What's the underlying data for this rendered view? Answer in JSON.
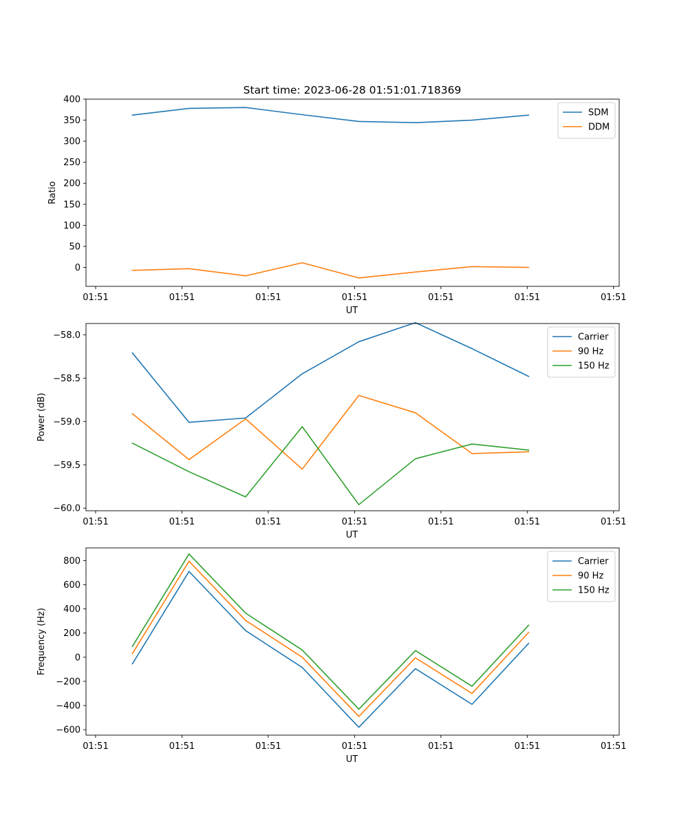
{
  "figure": {
    "title": "Start time: 2023-06-28 01:51:01.718369"
  },
  "chart_data": [
    {
      "type": "line",
      "xlabel": "UT",
      "ylabel": "Ratio",
      "x_tick_labels": [
        "01:51",
        "01:51",
        "01:51",
        "01:51",
        "01:51",
        "01:51",
        "01:51"
      ],
      "y_ticks": [
        0,
        50,
        100,
        150,
        200,
        250,
        300,
        350,
        400
      ],
      "ylim": [
        -45,
        400
      ],
      "legend_position": "top-right",
      "grid": false,
      "x": [
        1,
        2,
        3,
        4,
        5,
        6,
        7,
        8
      ],
      "series": [
        {
          "name": "SDM",
          "color": "#1f77b4",
          "values": [
            362,
            378,
            380,
            363,
            347,
            344,
            350,
            362
          ]
        },
        {
          "name": "DDM",
          "color": "#ff7f0e",
          "values": [
            -7,
            -3,
            -20,
            11,
            -25,
            -11,
            2,
            0
          ]
        }
      ]
    },
    {
      "type": "line",
      "xlabel": "UT",
      "ylabel": "Power (dB)",
      "x_tick_labels": [
        "01:51",
        "01:51",
        "01:51",
        "01:51",
        "01:51",
        "01:51",
        "01:51"
      ],
      "y_ticks": [
        -60.0,
        -59.5,
        -59.0,
        -58.5,
        -58.0
      ],
      "y_tick_labels": [
        "−60.0",
        "−59.5",
        "−59.0",
        "−58.5",
        "−58.0"
      ],
      "ylim": [
        -60.03,
        -57.87
      ],
      "legend_position": "top-right",
      "grid": false,
      "x": [
        1,
        2,
        3,
        4,
        5,
        6,
        7,
        8
      ],
      "series": [
        {
          "name": "Carrier",
          "color": "#1f77b4",
          "values": [
            -58.21,
            -59.01,
            -58.96,
            -58.45,
            -58.08,
            -57.86,
            -58.16,
            -58.48
          ]
        },
        {
          "name": "90 Hz",
          "color": "#ff7f0e",
          "values": [
            -58.91,
            -59.44,
            -58.97,
            -59.55,
            -58.7,
            -58.9,
            -59.37,
            -59.35
          ]
        },
        {
          "name": "150 Hz",
          "color": "#2ca02c",
          "values": [
            -59.25,
            -59.58,
            -59.87,
            -59.06,
            -59.96,
            -59.43,
            -59.26,
            -59.33
          ]
        }
      ]
    },
    {
      "type": "line",
      "xlabel": "UT",
      "ylabel": "Frequency (Hz)",
      "x_tick_labels": [
        "01:51",
        "01:51",
        "01:51",
        "01:51",
        "01:51",
        "01:51",
        "01:51"
      ],
      "y_ticks": [
        -600,
        -400,
        -200,
        0,
        200,
        400,
        600,
        800
      ],
      "y_tick_labels": [
        "−600",
        "−400",
        "−200",
        "0",
        "200",
        "400",
        "600",
        "800"
      ],
      "ylim": [
        -645,
        905
      ],
      "legend_position": "top-right",
      "grid": false,
      "x": [
        1,
        2,
        3,
        4,
        5,
        6,
        7,
        8
      ],
      "series": [
        {
          "name": "Carrier",
          "color": "#1f77b4",
          "values": [
            -55,
            710,
            220,
            -85,
            -580,
            -95,
            -390,
            115
          ]
        },
        {
          "name": "90 Hz",
          "color": "#ff7f0e",
          "values": [
            30,
            795,
            305,
            0,
            -490,
            -5,
            -300,
            205
          ]
        },
        {
          "name": "150 Hz",
          "color": "#2ca02c",
          "values": [
            90,
            855,
            365,
            60,
            -430,
            55,
            -240,
            265
          ]
        }
      ]
    }
  ]
}
